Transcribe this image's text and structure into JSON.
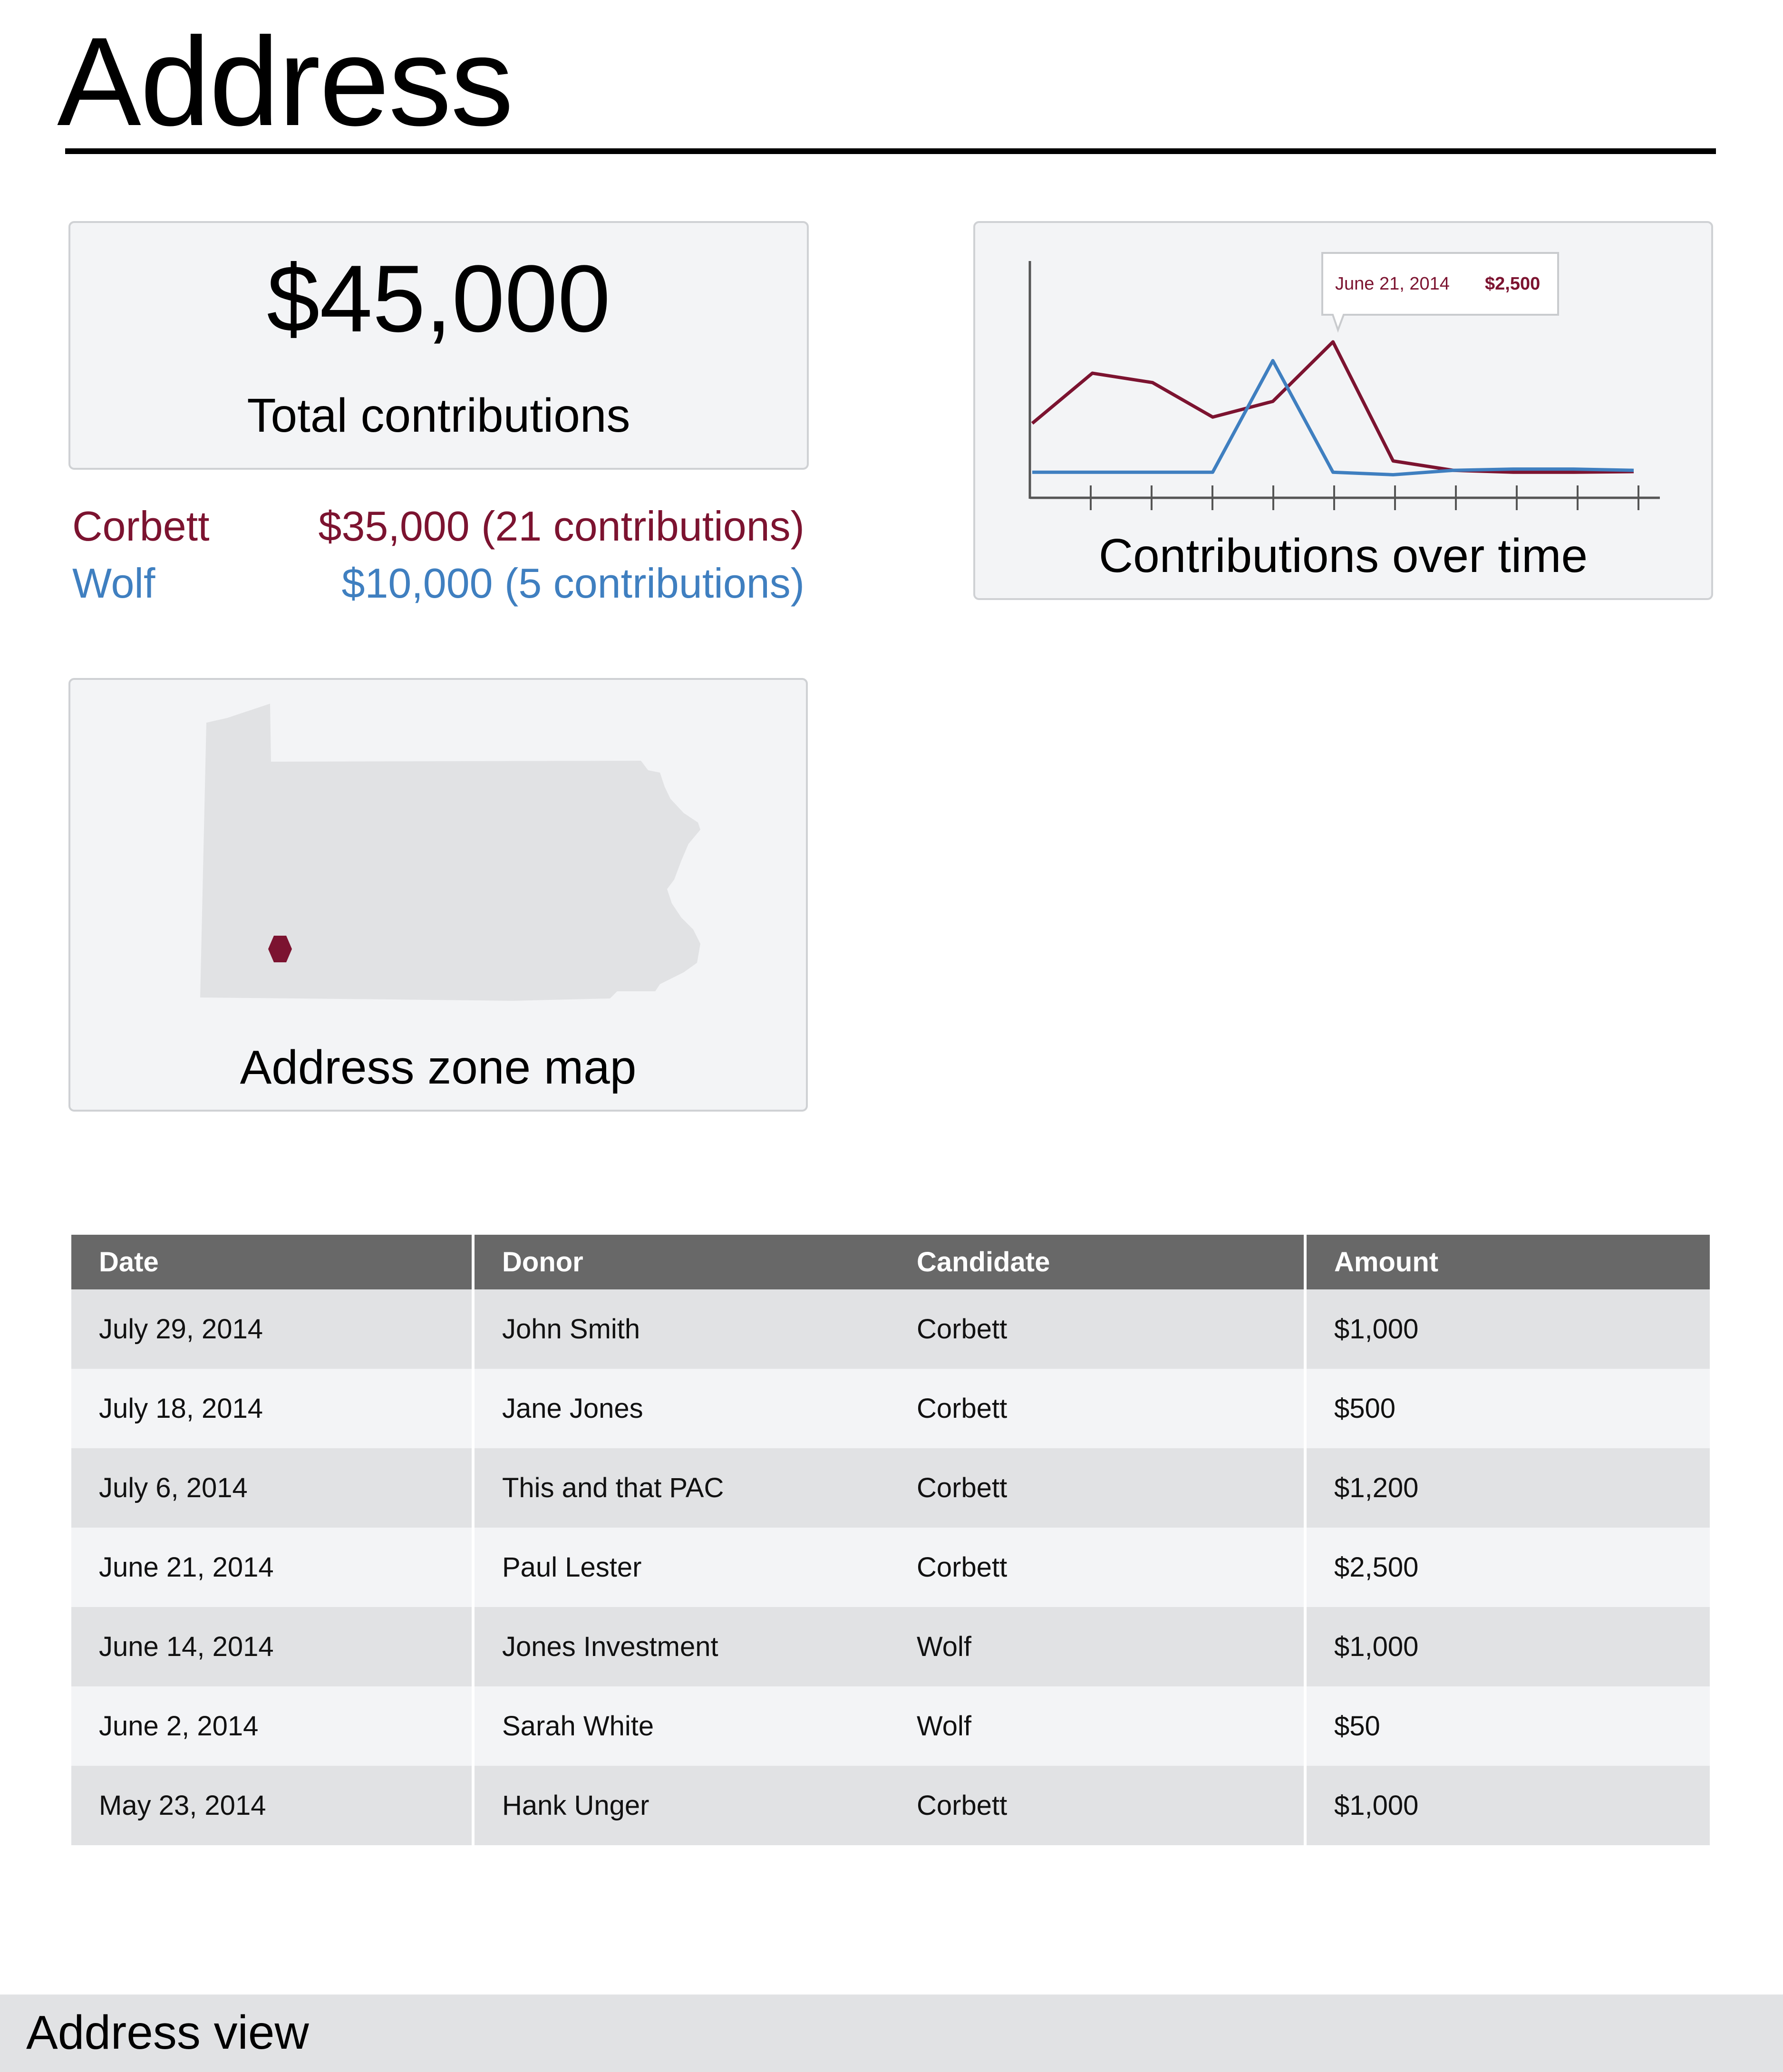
{
  "page": {
    "title": "Address"
  },
  "summary": {
    "total_amount": "$45,000",
    "total_label": "Total contributions",
    "candidates": [
      {
        "name": "Corbett",
        "amount_text": "$35,000 (21 contributions)",
        "color": "#7c1330"
      },
      {
        "name": "Wolf",
        "amount_text": "$10,000 (5 contributions)",
        "color": "#3f7fc0"
      }
    ]
  },
  "chart": {
    "caption": "Contributions over time",
    "tooltip": {
      "date": "June 21, 2014",
      "value": "$2,500"
    }
  },
  "chart_data": {
    "type": "line",
    "series": [
      {
        "name": "Corbett",
        "color": "#7c1330",
        "values": [
          1200,
          2000,
          1850,
          1300,
          1550,
          2500,
          600,
          450,
          420,
          420,
          430
        ]
      },
      {
        "name": "Wolf",
        "color": "#3f7fc0",
        "values": [
          420,
          420,
          420,
          420,
          2200,
          420,
          380,
          450,
          470,
          470,
          450
        ]
      }
    ],
    "x_ticks": 10,
    "grid": false
  },
  "map": {
    "caption": "Address zone map",
    "marker_color": "#7c1330",
    "region_color": "#e1e2e4"
  },
  "table": {
    "columns": [
      "Date",
      "Donor",
      "Candidate",
      "Amount"
    ],
    "rows": [
      {
        "date": "July 29, 2014",
        "donor": "John Smith",
        "candidate": "Corbett",
        "amount": "$1,000"
      },
      {
        "date": "July 18, 2014",
        "donor": "Jane Jones",
        "candidate": "Corbett",
        "amount": "$500"
      },
      {
        "date": "July 6, 2014",
        "donor": "This and that PAC",
        "candidate": "Corbett",
        "amount": "$1,200"
      },
      {
        "date": "June 21, 2014",
        "donor": "Paul Lester",
        "candidate": "Corbett",
        "amount": "$2,500"
      },
      {
        "date": "June 14, 2014",
        "donor": "Jones Investment",
        "candidate": "Wolf",
        "amount": "$1,000"
      },
      {
        "date": "June 2, 2014",
        "donor": "Sarah White",
        "candidate": "Wolf",
        "amount": "$50"
      },
      {
        "date": "May 23, 2014",
        "donor": "Hank Unger",
        "candidate": "Corbett",
        "amount": "$1,000"
      }
    ]
  },
  "footer": {
    "label": "Address view"
  }
}
